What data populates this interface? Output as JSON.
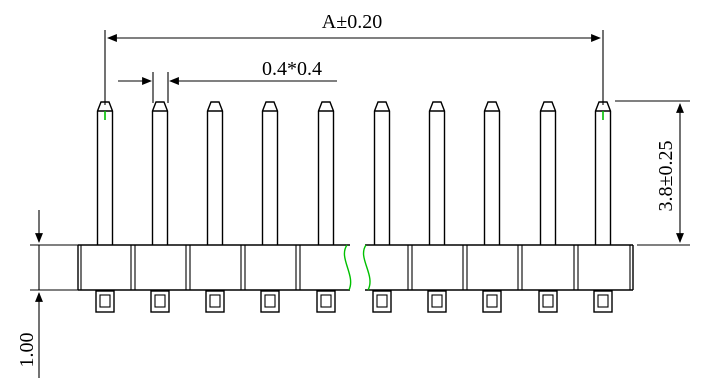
{
  "drawing": {
    "dimensions": {
      "overall_width": "A±0.20",
      "pin_section": "0.4*0.4",
      "pin_height": "3.8±0.25",
      "base_thickness": "1.00"
    },
    "pin_count_shown": 10,
    "colors": {
      "line": "#000000",
      "accent": "#00c000",
      "background": "#ffffff"
    }
  }
}
